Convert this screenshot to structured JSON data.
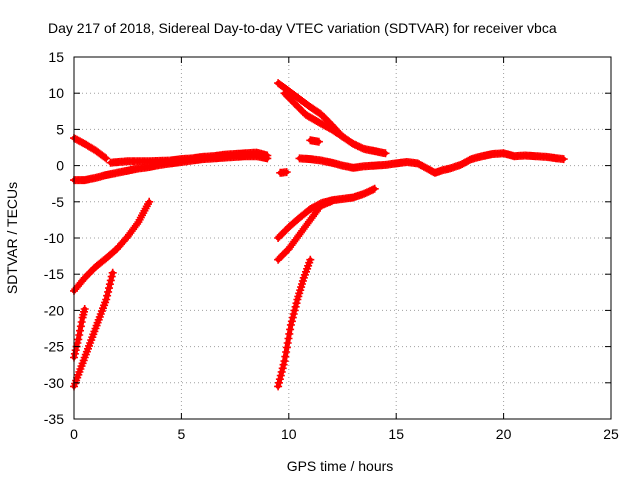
{
  "chart_data": {
    "type": "scatter",
    "title": "Day 217 of 2018, Sidereal Day-to-day VTEC variation (SDTVAR) for receiver vbca",
    "xlabel": "GPS time / hours",
    "ylabel": "SDTVAR / TECUs",
    "xlim": [
      0,
      25
    ],
    "ylim": [
      -35,
      15
    ],
    "xticks": [
      0,
      5,
      10,
      15,
      20,
      25
    ],
    "yticks": [
      -35,
      -30,
      -25,
      -20,
      -15,
      -10,
      -5,
      0,
      5,
      10,
      15
    ],
    "grid": true,
    "marker": "plus",
    "color": "#ff0000",
    "series": [
      {
        "name": "main-band-left",
        "points": [
          [
            0,
            -2.0
          ],
          [
            0.5,
            -2.0
          ],
          [
            1,
            -1.7
          ],
          [
            1.5,
            -1.3
          ],
          [
            2,
            -1.0
          ],
          [
            2.5,
            -0.7
          ],
          [
            3,
            -0.4
          ],
          [
            3.5,
            -0.2
          ],
          [
            4,
            0.1
          ],
          [
            4.5,
            0.3
          ],
          [
            5,
            0.5
          ],
          [
            5.5,
            0.7
          ],
          [
            6,
            0.9
          ],
          [
            6.5,
            1.0
          ],
          [
            7,
            1.1
          ],
          [
            7.5,
            1.2
          ],
          [
            8,
            1.3
          ],
          [
            8.5,
            1.3
          ],
          [
            9,
            1.0
          ]
        ]
      },
      {
        "name": "main-band-upper",
        "points": [
          [
            1.7,
            0.4
          ],
          [
            2.5,
            0.6
          ],
          [
            3.5,
            0.6
          ],
          [
            4.5,
            0.7
          ],
          [
            5,
            0.9
          ],
          [
            5.5,
            1.0
          ],
          [
            6,
            1.2
          ],
          [
            6.5,
            1.3
          ],
          [
            7,
            1.5
          ],
          [
            7.5,
            1.6
          ],
          [
            8,
            1.7
          ],
          [
            8.5,
            1.8
          ],
          [
            9,
            1.4
          ]
        ]
      },
      {
        "name": "early-descending",
        "points": [
          [
            0,
            3.8
          ],
          [
            0.5,
            3.0
          ],
          [
            1,
            2.1
          ],
          [
            1.5,
            1.0
          ]
        ]
      },
      {
        "name": "dot-near-10",
        "points": [
          [
            9.6,
            -1.0
          ],
          [
            9.9,
            -0.9
          ]
        ]
      },
      {
        "name": "mid-band",
        "points": [
          [
            10.5,
            1.0
          ],
          [
            11,
            0.9
          ],
          [
            11.5,
            0.7
          ],
          [
            12,
            0.4
          ],
          [
            12.5,
            0.0
          ],
          [
            13,
            -0.3
          ],
          [
            13.5,
            -0.1
          ],
          [
            14,
            0.0
          ],
          [
            14.5,
            0.1
          ],
          [
            15,
            0.3
          ],
          [
            15.5,
            0.5
          ],
          [
            16,
            0.3
          ],
          [
            16.5,
            -0.5
          ],
          [
            16.8,
            -1.0
          ],
          [
            17.2,
            -0.6
          ],
          [
            17.5,
            -0.4
          ],
          [
            18,
            0.1
          ],
          [
            18.5,
            0.9
          ],
          [
            19,
            1.3
          ],
          [
            19.5,
            1.6
          ],
          [
            20,
            1.7
          ],
          [
            20.5,
            1.3
          ],
          [
            21,
            1.4
          ],
          [
            21.5,
            1.3
          ],
          [
            22,
            1.2
          ],
          [
            22.5,
            1.0
          ],
          [
            22.8,
            0.9
          ]
        ]
      },
      {
        "name": "short-segment",
        "points": [
          [
            11,
            3.5
          ],
          [
            11.4,
            3.3
          ]
        ]
      },
      {
        "name": "high-descending-a",
        "points": [
          [
            9.5,
            11.4
          ],
          [
            10,
            10.3
          ],
          [
            10.5,
            9.2
          ],
          [
            11,
            8.1
          ],
          [
            11.5,
            7.1
          ],
          [
            12,
            5.6
          ],
          [
            12.5,
            4.0
          ],
          [
            13,
            3.0
          ],
          [
            13.5,
            2.3
          ],
          [
            14,
            2.0
          ],
          [
            14.5,
            1.7
          ]
        ]
      },
      {
        "name": "high-descending-b",
        "points": [
          [
            9.8,
            10.0
          ],
          [
            10.3,
            8.5
          ],
          [
            10.8,
            7.0
          ],
          [
            11.5,
            5.8
          ],
          [
            12,
            5.0
          ],
          [
            12.5,
            4.0
          ]
        ]
      },
      {
        "name": "ascending-a",
        "points": [
          [
            9.5,
            -10.0
          ],
          [
            10,
            -8.5
          ],
          [
            10.5,
            -7.2
          ],
          [
            11,
            -6.0
          ],
          [
            11.5,
            -5.2
          ],
          [
            12,
            -4.8
          ],
          [
            12.5,
            -4.6
          ],
          [
            13,
            -4.4
          ],
          [
            13.5,
            -3.9
          ],
          [
            14,
            -3.2
          ]
        ]
      },
      {
        "name": "ascending-b",
        "points": [
          [
            9.5,
            -13.0
          ],
          [
            10,
            -11.5
          ],
          [
            10.5,
            -9.5
          ],
          [
            11,
            -7.5
          ],
          [
            11.5,
            -5.5
          ],
          [
            12,
            -4.9
          ]
        ]
      },
      {
        "name": "ascending-c",
        "points": [
          [
            9.5,
            -30.5
          ],
          [
            9.8,
            -27.0
          ],
          [
            10.1,
            -22.0
          ],
          [
            10.4,
            -18.5
          ],
          [
            10.7,
            -15.5
          ],
          [
            11,
            -13.0
          ]
        ]
      },
      {
        "name": "left-rising-a",
        "points": [
          [
            0,
            -17.3
          ],
          [
            0.5,
            -15.5
          ],
          [
            1,
            -14.0
          ],
          [
            1.5,
            -12.8
          ],
          [
            2,
            -11.5
          ],
          [
            2.5,
            -9.8
          ],
          [
            3,
            -7.8
          ],
          [
            3.5,
            -5.0
          ]
        ]
      },
      {
        "name": "left-rising-b",
        "points": [
          [
            0,
            -30.5
          ],
          [
            0.5,
            -26.5
          ],
          [
            1,
            -22.5
          ],
          [
            1.5,
            -18.5
          ],
          [
            1.8,
            -14.8
          ]
        ]
      },
      {
        "name": "left-rising-c",
        "points": [
          [
            0,
            -26.5
          ],
          [
            0.2,
            -24.0
          ],
          [
            0.4,
            -21.0
          ],
          [
            0.5,
            -19.8
          ]
        ]
      }
    ]
  }
}
